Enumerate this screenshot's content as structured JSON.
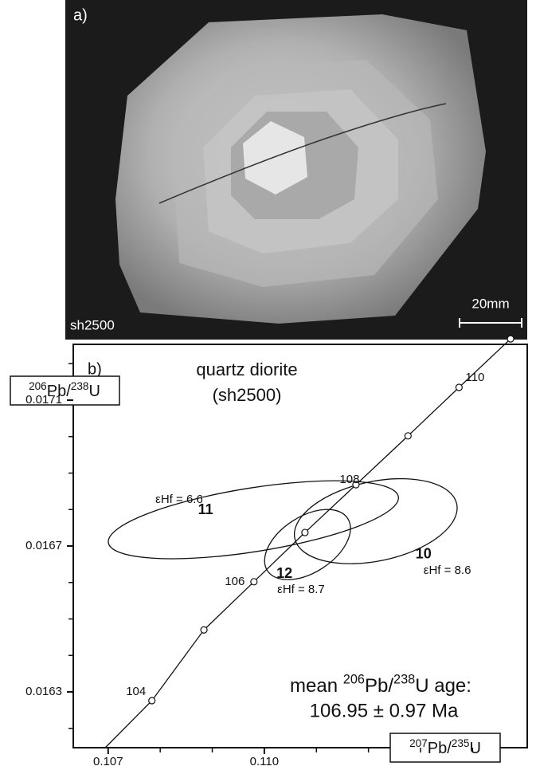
{
  "panel_a": {
    "label": "a)",
    "sample": "sh2500",
    "scale_bar": "20mm"
  },
  "chart_data": {
    "type": "concordia",
    "panel_label": "b)",
    "title": "quartz diorite",
    "subtitle": "(sh2500)",
    "y_label": [
      {
        "text": "206",
        "sup": true
      },
      {
        "text": "Pb/",
        "sup": false
      },
      {
        "text": "238",
        "sup": true
      },
      {
        "text": "U",
        "sup": false
      }
    ],
    "x_label": [
      {
        "text": "207",
        "sup": true
      },
      {
        "text": "Pb/",
        "sup": false
      },
      {
        "text": "235",
        "sup": true
      },
      {
        "text": "U",
        "sup": false
      }
    ],
    "xlim": [
      0.10633,
      0.11505
    ],
    "ylim": [
      0.016147,
      0.017253
    ],
    "xticks": [
      0.107,
      {
        "value": 0.11,
        "label": "0.110"
      }
    ],
    "xminor": [
      0.108,
      0.109,
      0.111,
      0.112,
      0.113,
      0.114
    ],
    "yticks": [
      0.0163,
      0.0167,
      0.0171
    ],
    "yminor": [
      0.0162,
      0.0164,
      0.0165,
      0.0166,
      0.0168,
      0.0169,
      0.017,
      0.0172
    ],
    "concordia": {
      "age": [
        104,
        null,
        106,
        null,
        108,
        null,
        110,
        null
      ],
      "x": [
        0.10784,
        0.10884,
        0.1098,
        0.11078,
        0.11176,
        0.11276,
        0.11374,
        0.11473
      ],
      "y": [
        0.016276,
        0.01647,
        0.016602,
        0.016737,
        0.016868,
        0.017002,
        0.017135,
        0.017268
      ]
    },
    "ellipses": [
      {
        "label": "11",
        "ehf": "εHf = 6.6",
        "x": 0.10979,
        "y": 0.016772,
        "a": 0.00282,
        "b": 8.74e-05,
        "angle": -9
      },
      {
        "label": "10",
        "ehf": "εHf = 8.6",
        "x": 0.11214,
        "y": 0.016768,
        "a": 0.00159,
        "b": 0.000109,
        "angle": -12
      },
      {
        "label": "12",
        "ehf": "εHf = 8.7",
        "x": 0.11083,
        "y": 0.016704,
        "a": 0.00092,
        "b": 7.65e-05,
        "angle": -33
      }
    ],
    "mean_age": {
      "label": [
        {
          "text": "mean ",
          "sup": false
        },
        {
          "text": "206",
          "sup": true
        },
        {
          "text": "Pb/",
          "sup": false
        },
        {
          "text": "238",
          "sup": true
        },
        {
          "text": "U age:",
          "sup": false
        }
      ],
      "value": "106.95 ± 0.97 Ma"
    }
  }
}
